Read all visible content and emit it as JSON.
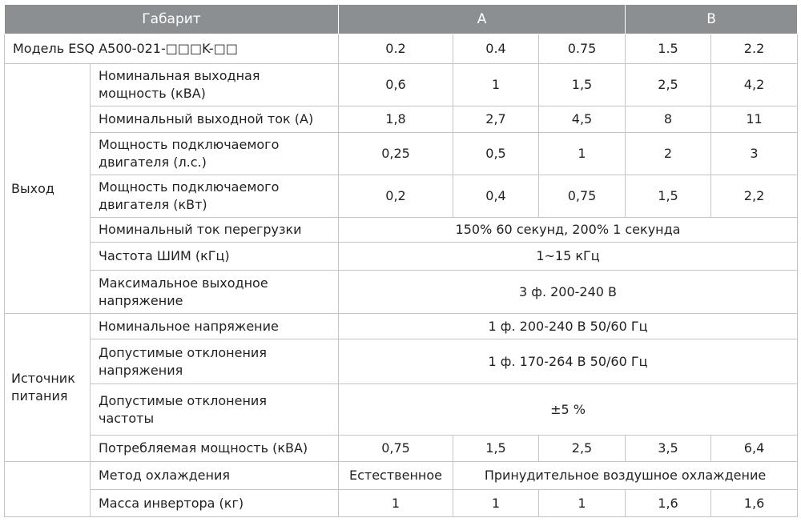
{
  "header": {
    "label": "Габарит",
    "groups": [
      "A",
      "B"
    ]
  },
  "model": {
    "label": "Модель ESQ A500-021-□□□K-□□",
    "values": [
      "0.2",
      "0.4",
      "0.75",
      "1.5",
      "2.2"
    ]
  },
  "sections": [
    {
      "title": "Выход",
      "rows": [
        {
          "label": "Номинальная выходная\nмощность (кВА)",
          "values": [
            "0,6",
            "1",
            "1,5",
            "2,5",
            "4,2"
          ]
        },
        {
          "label": "Номинальный выходной ток (А)",
          "values": [
            "1,8",
            "2,7",
            "4,5",
            "8",
            "11"
          ]
        },
        {
          "label": "Мощность подключаемого\nдвигателя (л.с.)",
          "values": [
            "0,25",
            "0,5",
            "1",
            "2",
            "3"
          ]
        },
        {
          "label": "Мощность подключаемого\nдвигателя (кВт)",
          "values": [
            "0,2",
            "0,4",
            "0,75",
            "1,5",
            "2,2"
          ]
        },
        {
          "label": "Номинальный ток перегрузки",
          "values": [
            "150% 60 секунд, 200% 1 секунда"
          ]
        },
        {
          "label": "Частота ШИМ (кГц)",
          "values": [
            "1~15 кГц"
          ]
        },
        {
          "label": "Максимальное выходное\nнапряжение",
          "values": [
            "3 ф. 200-240 В"
          ]
        }
      ]
    },
    {
      "title": "Источник\nпитания",
      "rows": [
        {
          "label": "Номинальное напряжение",
          "values": [
            "1 ф. 200-240 В  50/60 Гц"
          ]
        },
        {
          "label": "Допустимые отклонения\nнапряжения",
          "values": [
            "1 ф. 170-264 В  50/60 Гц"
          ]
        },
        {
          "label": "Допустимые отклонения\nчастоты",
          "values": [
            "±5 %"
          ]
        },
        {
          "label": "Потребляемая мощность (кВА)",
          "values": [
            "0,75",
            "1,5",
            "2,5",
            "3,5",
            "6,4"
          ]
        }
      ]
    },
    {
      "title": null,
      "rows": [
        {
          "label": "Метод охлаждения",
          "values": [
            "Естественное",
            "Принудительное воздушное охлаждение"
          ]
        },
        {
          "label": "Масса инвертора (кг)",
          "values": [
            "1",
            "1",
            "1",
            "1,6",
            "1,6"
          ]
        }
      ]
    }
  ]
}
